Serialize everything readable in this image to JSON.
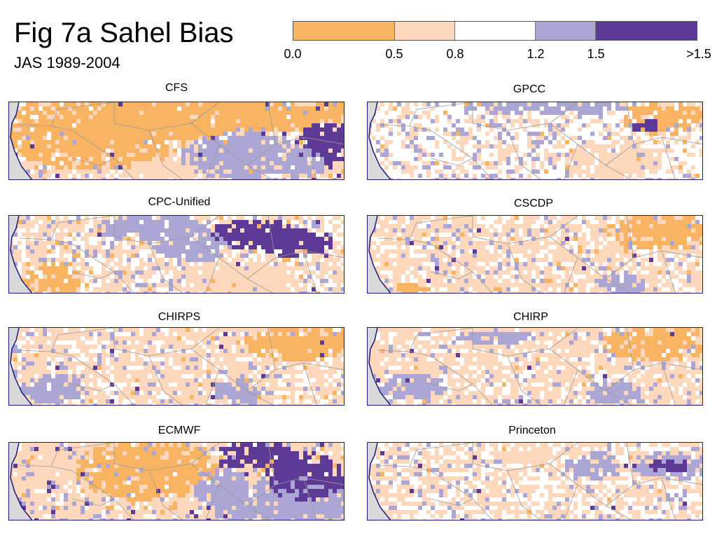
{
  "figure": {
    "title": "Fig 7a Sahel Bias",
    "subtitle": "JAS 1989-2004"
  },
  "colorbar": {
    "colors": [
      "#f8b462",
      "#fdd8bc",
      "#ffffff",
      "#aba6d3",
      "#5c3a95"
    ],
    "tick_labels": [
      "0.0",
      "0.5",
      "0.8",
      "1.2",
      "1.5",
      ">1.5"
    ]
  },
  "map_style": {
    "land_outside": "#d9d9d9",
    "coastline": "#1a1a7a",
    "borders": "#999999"
  },
  "panels": [
    {
      "name": "CFS",
      "pattern": "Large low-bias (0.0–0.5) region over western and central Sahel; light orange band in south; moderate high bias (1.2–1.5) in east-central area; strong high bias (>1.5) in far east."
    },
    {
      "name": "GPCC",
      "pattern": "Mostly near-unbiased (0.8–1.2); scattered light orange and light purple pixels; low-bias patch (0.0–0.5) in northeast with a small >1.5 spot."
    },
    {
      "name": "CPC-Unified",
      "pattern": "Mixed light orange and white; band of 1.2–1.5 and >1.5 across the north-central and northeast; low-bias patches in southwest and south-center."
    },
    {
      "name": "CSCDP",
      "pattern": "Mostly light orange (0.5–0.8) speckled with white; low-bias block (0.0–0.5) in northeast; scattered light purple pixels."
    },
    {
      "name": "CHIRPS",
      "pattern": "Striped light orange and white; low-bias block (0.0–0.5) in northeast; scattered light purple patches in south."
    },
    {
      "name": "CHIRP",
      "pattern": "Similar to CHIRPS: striped light orange and white, low-bias block in northeast, light purple speckles."
    },
    {
      "name": "ECMWF",
      "pattern": "Low bias (0.0–0.5) in north-central; light orange across west and south; large 1.2–1.5 region in east with >1.5 core in northeast."
    },
    {
      "name": "Princeton",
      "pattern": "Mostly white with light orange stripes; light purple patches in north-central and east; small >1.5 spot in east."
    }
  ]
}
